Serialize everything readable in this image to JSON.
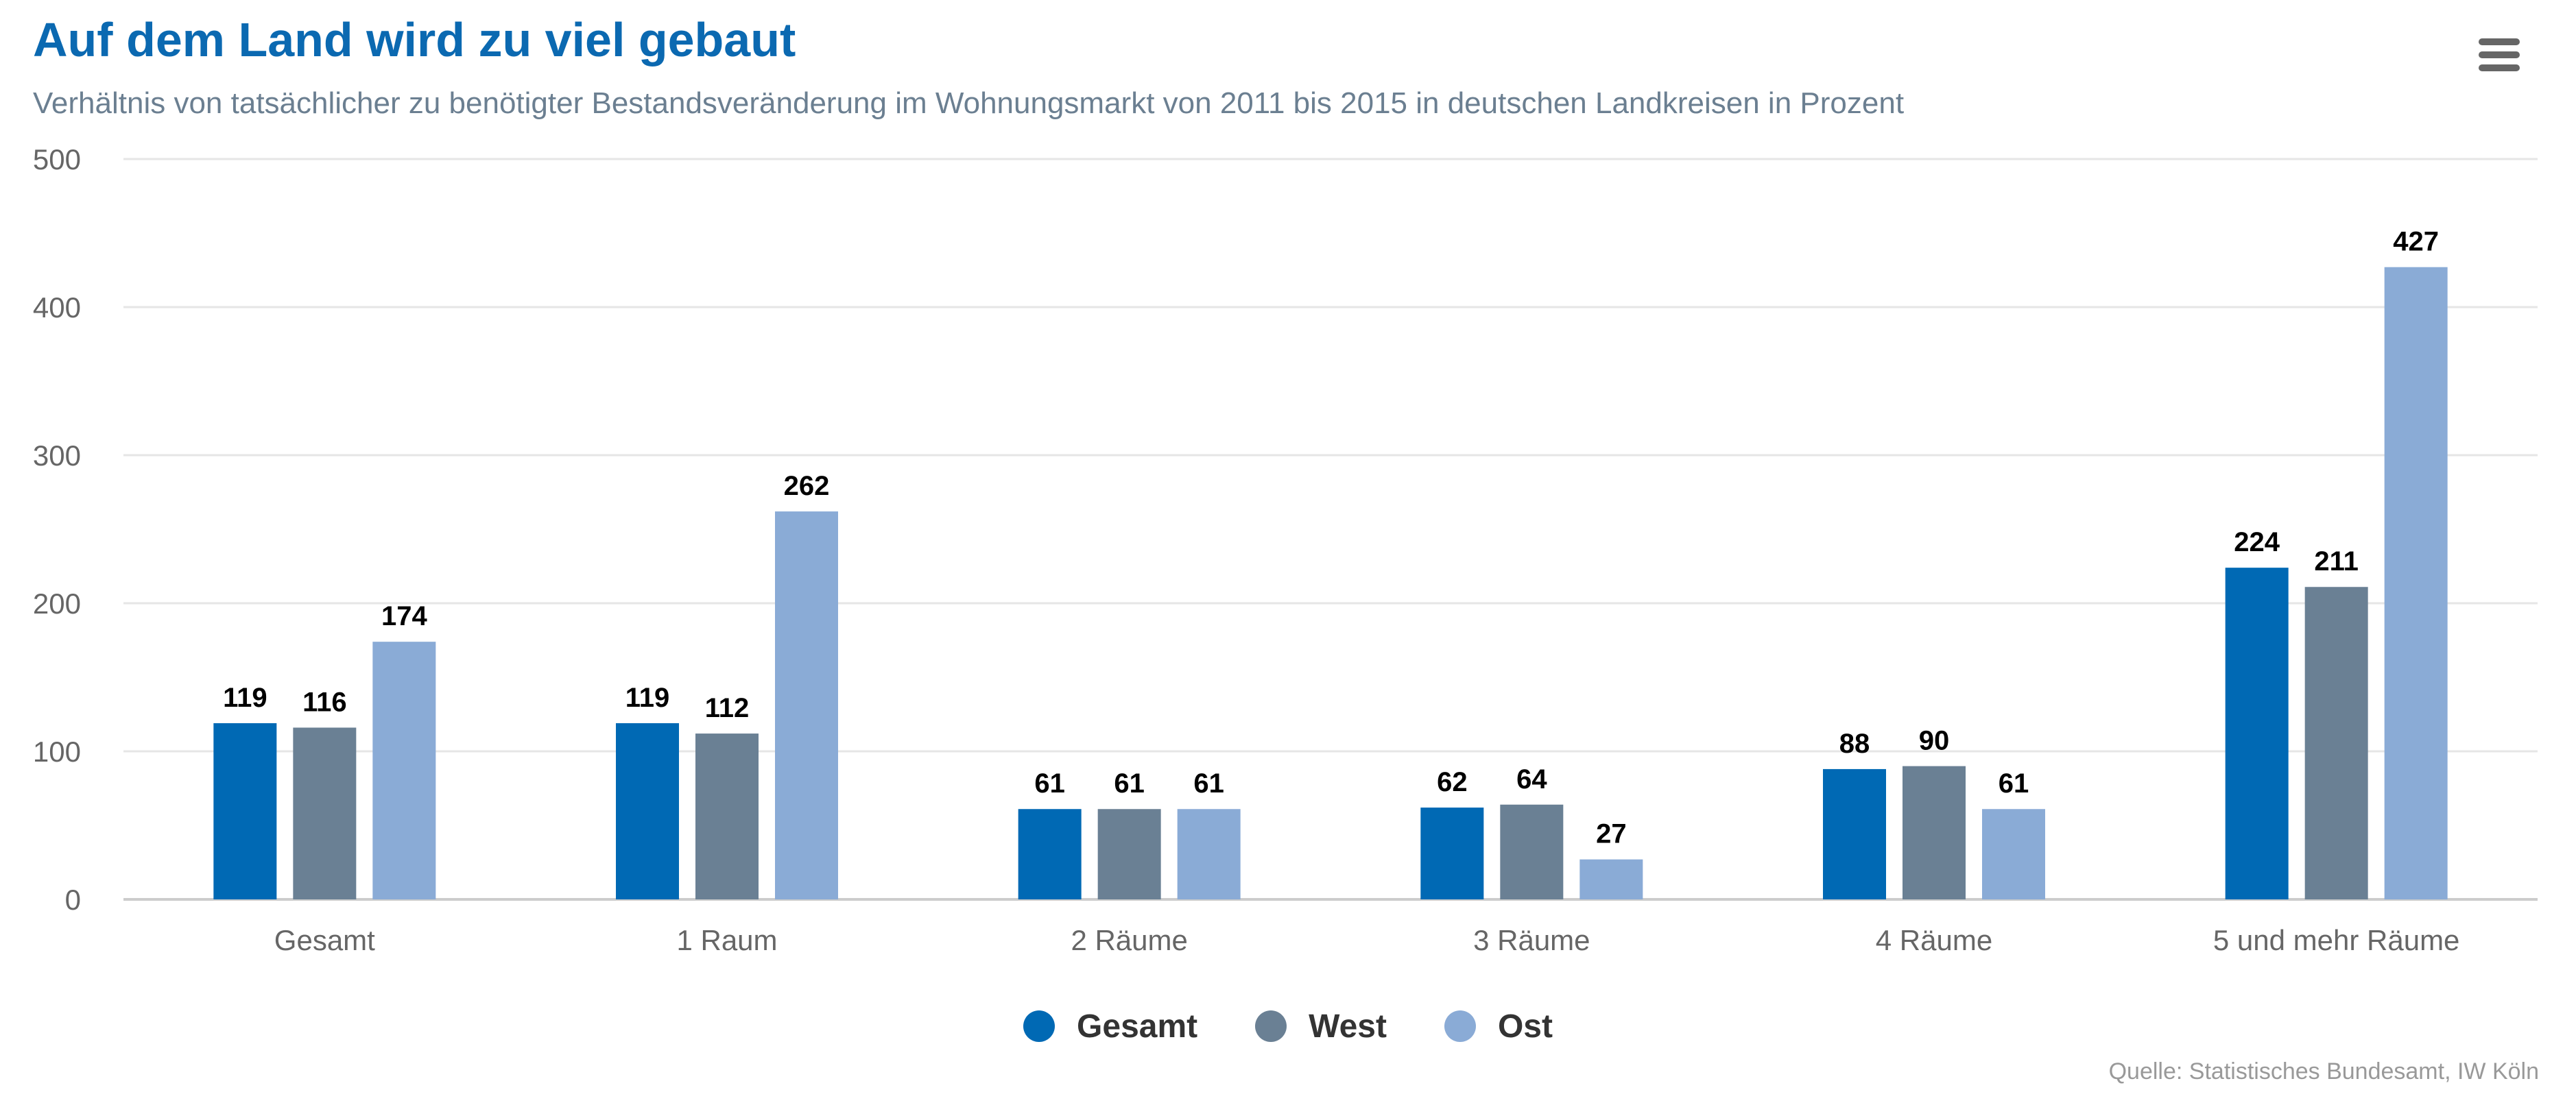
{
  "title": "Auf dem Land wird zu viel gebaut",
  "subtitle": "Verhältnis von tatsächlicher zu benötigter Bestandsveränderung im Wohnungsmarkt von 2011 bis 2015 in deutschen Landkreisen in Prozent",
  "menu_icon": "hamburger-menu-icon",
  "source": "Quelle: Statistisches Bundesamt, IW Köln",
  "chart_data": {
    "type": "bar",
    "title": "Auf dem Land wird zu viel gebaut",
    "subtitle": "Verhältnis von tatsächlicher zu benötigter Bestandsveränderung im Wohnungsmarkt von 2011 bis 2015 in deutschen Landkreisen in Prozent",
    "xlabel": "",
    "ylabel": "",
    "categories": [
      "Gesamt",
      "1 Raum",
      "2 Räume",
      "3 Räume",
      "4 Räume",
      "5 und mehr Räume"
    ],
    "series": [
      {
        "name": "Gesamt",
        "color": "#0069b4",
        "values": [
          119,
          119,
          61,
          62,
          88,
          224
        ]
      },
      {
        "name": "West",
        "color": "#6a8094",
        "values": [
          116,
          112,
          61,
          64,
          90,
          211
        ]
      },
      {
        "name": "Ost",
        "color": "#8aabd6",
        "values": [
          174,
          262,
          61,
          27,
          61,
          427
        ]
      }
    ],
    "ylim": [
      0,
      500
    ],
    "yticks": [
      0,
      100,
      200,
      300,
      400,
      500
    ],
    "grid": true,
    "data_labels": true,
    "legend": "bottom-center"
  }
}
